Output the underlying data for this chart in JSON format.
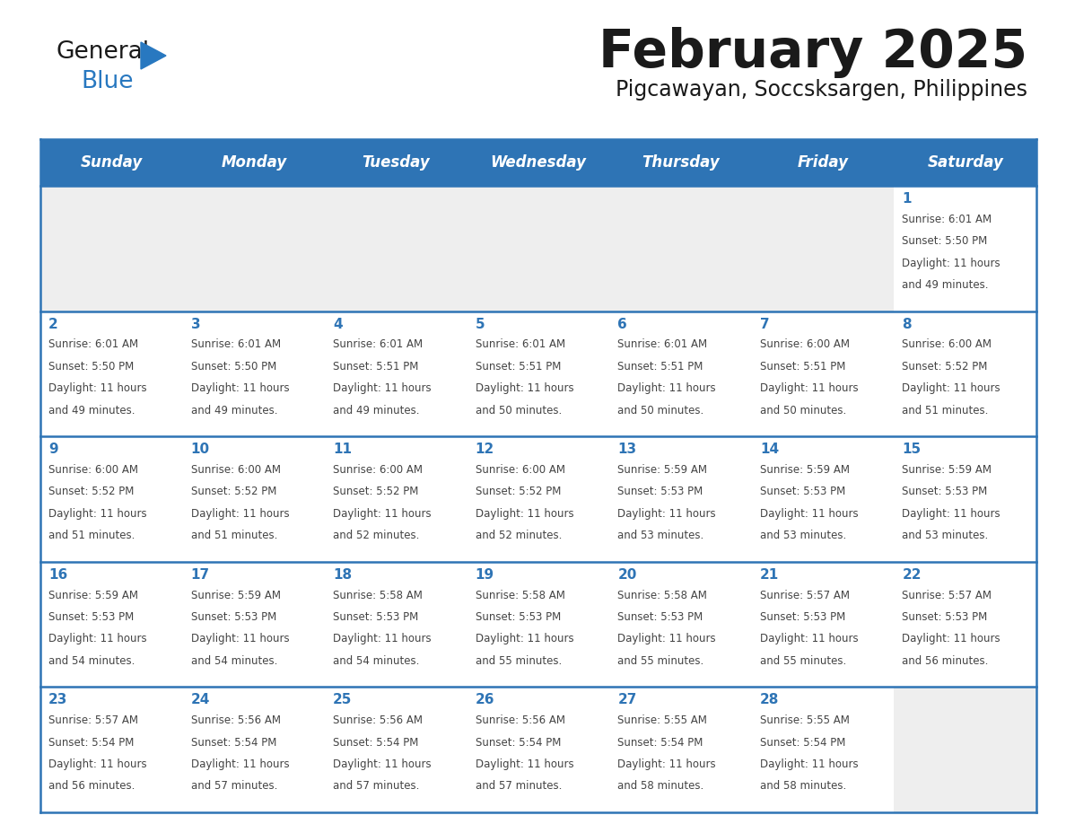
{
  "title": "February 2025",
  "subtitle": "Pigcawayan, Soccsksargen, Philippines",
  "header_bg": "#2e74b5",
  "header_text_color": "#ffffff",
  "day_names": [
    "Sunday",
    "Monday",
    "Tuesday",
    "Wednesday",
    "Thursday",
    "Friday",
    "Saturday"
  ],
  "title_color": "#1a1a1a",
  "subtitle_color": "#1a1a1a",
  "cell_bg_white": "#ffffff",
  "cell_bg_gray": "#eeeeee",
  "border_color": "#2e74b5",
  "day_num_color": "#2e74b5",
  "text_color": "#444444",
  "logo_general_color": "#1a1a1a",
  "logo_blue_color": "#2878c0",
  "calendar_data": [
    [
      {
        "day": null,
        "sunrise": null,
        "sunset": null,
        "daylight": null
      },
      {
        "day": null,
        "sunrise": null,
        "sunset": null,
        "daylight": null
      },
      {
        "day": null,
        "sunrise": null,
        "sunset": null,
        "daylight": null
      },
      {
        "day": null,
        "sunrise": null,
        "sunset": null,
        "daylight": null
      },
      {
        "day": null,
        "sunrise": null,
        "sunset": null,
        "daylight": null
      },
      {
        "day": null,
        "sunrise": null,
        "sunset": null,
        "daylight": null
      },
      {
        "day": 1,
        "sunrise": "6:01 AM",
        "sunset": "5:50 PM",
        "daylight": "11 hours and 49 minutes."
      }
    ],
    [
      {
        "day": 2,
        "sunrise": "6:01 AM",
        "sunset": "5:50 PM",
        "daylight": "11 hours and 49 minutes."
      },
      {
        "day": 3,
        "sunrise": "6:01 AM",
        "sunset": "5:50 PM",
        "daylight": "11 hours and 49 minutes."
      },
      {
        "day": 4,
        "sunrise": "6:01 AM",
        "sunset": "5:51 PM",
        "daylight": "11 hours and 49 minutes."
      },
      {
        "day": 5,
        "sunrise": "6:01 AM",
        "sunset": "5:51 PM",
        "daylight": "11 hours and 50 minutes."
      },
      {
        "day": 6,
        "sunrise": "6:01 AM",
        "sunset": "5:51 PM",
        "daylight": "11 hours and 50 minutes."
      },
      {
        "day": 7,
        "sunrise": "6:00 AM",
        "sunset": "5:51 PM",
        "daylight": "11 hours and 50 minutes."
      },
      {
        "day": 8,
        "sunrise": "6:00 AM",
        "sunset": "5:52 PM",
        "daylight": "11 hours and 51 minutes."
      }
    ],
    [
      {
        "day": 9,
        "sunrise": "6:00 AM",
        "sunset": "5:52 PM",
        "daylight": "11 hours and 51 minutes."
      },
      {
        "day": 10,
        "sunrise": "6:00 AM",
        "sunset": "5:52 PM",
        "daylight": "11 hours and 51 minutes."
      },
      {
        "day": 11,
        "sunrise": "6:00 AM",
        "sunset": "5:52 PM",
        "daylight": "11 hours and 52 minutes."
      },
      {
        "day": 12,
        "sunrise": "6:00 AM",
        "sunset": "5:52 PM",
        "daylight": "11 hours and 52 minutes."
      },
      {
        "day": 13,
        "sunrise": "5:59 AM",
        "sunset": "5:53 PM",
        "daylight": "11 hours and 53 minutes."
      },
      {
        "day": 14,
        "sunrise": "5:59 AM",
        "sunset": "5:53 PM",
        "daylight": "11 hours and 53 minutes."
      },
      {
        "day": 15,
        "sunrise": "5:59 AM",
        "sunset": "5:53 PM",
        "daylight": "11 hours and 53 minutes."
      }
    ],
    [
      {
        "day": 16,
        "sunrise": "5:59 AM",
        "sunset": "5:53 PM",
        "daylight": "11 hours and 54 minutes."
      },
      {
        "day": 17,
        "sunrise": "5:59 AM",
        "sunset": "5:53 PM",
        "daylight": "11 hours and 54 minutes."
      },
      {
        "day": 18,
        "sunrise": "5:58 AM",
        "sunset": "5:53 PM",
        "daylight": "11 hours and 54 minutes."
      },
      {
        "day": 19,
        "sunrise": "5:58 AM",
        "sunset": "5:53 PM",
        "daylight": "11 hours and 55 minutes."
      },
      {
        "day": 20,
        "sunrise": "5:58 AM",
        "sunset": "5:53 PM",
        "daylight": "11 hours and 55 minutes."
      },
      {
        "day": 21,
        "sunrise": "5:57 AM",
        "sunset": "5:53 PM",
        "daylight": "11 hours and 55 minutes."
      },
      {
        "day": 22,
        "sunrise": "5:57 AM",
        "sunset": "5:53 PM",
        "daylight": "11 hours and 56 minutes."
      }
    ],
    [
      {
        "day": 23,
        "sunrise": "5:57 AM",
        "sunset": "5:54 PM",
        "daylight": "11 hours and 56 minutes."
      },
      {
        "day": 24,
        "sunrise": "5:56 AM",
        "sunset": "5:54 PM",
        "daylight": "11 hours and 57 minutes."
      },
      {
        "day": 25,
        "sunrise": "5:56 AM",
        "sunset": "5:54 PM",
        "daylight": "11 hours and 57 minutes."
      },
      {
        "day": 26,
        "sunrise": "5:56 AM",
        "sunset": "5:54 PM",
        "daylight": "11 hours and 57 minutes."
      },
      {
        "day": 27,
        "sunrise": "5:55 AM",
        "sunset": "5:54 PM",
        "daylight": "11 hours and 58 minutes."
      },
      {
        "day": 28,
        "sunrise": "5:55 AM",
        "sunset": "5:54 PM",
        "daylight": "11 hours and 58 minutes."
      },
      {
        "day": null,
        "sunrise": null,
        "sunset": null,
        "daylight": null
      }
    ]
  ]
}
